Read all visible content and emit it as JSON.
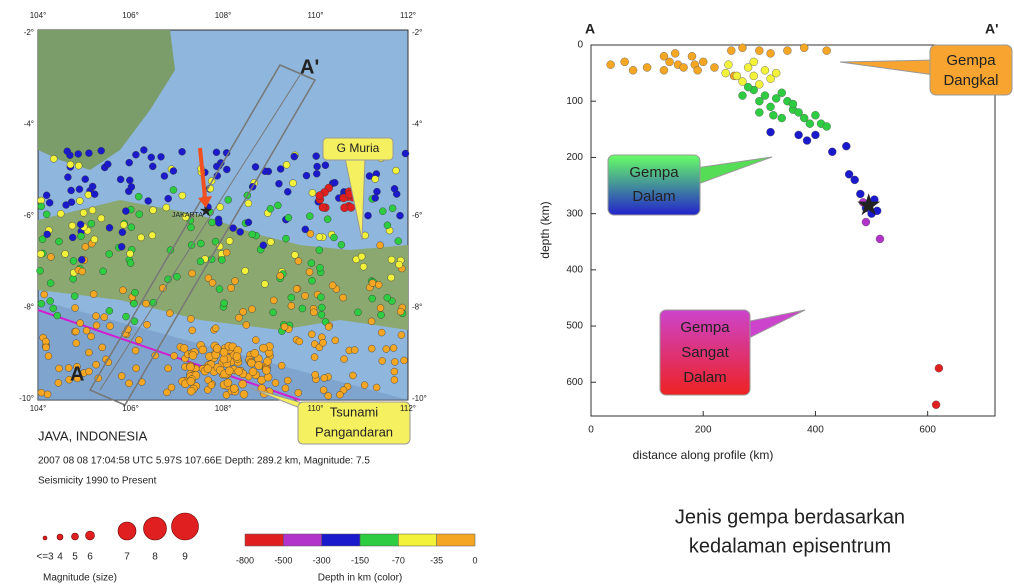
{
  "map": {
    "lon_ticks": [
      "104°",
      "106°",
      "108°",
      "110°",
      "112°"
    ],
    "lat_ticks": [
      "-2°",
      "-4°",
      "-6°",
      "-8°",
      "-10°"
    ],
    "label_a": "A",
    "label_a_prime": "A'",
    "jakarta": "JAKARTA",
    "muria": "G Muria",
    "tsunami": [
      "Tsunami",
      "Pangandaran"
    ],
    "title": "JAVA, INDONESIA",
    "event": "2007 08 08 17:04:58 UTC 5.97S 107.66E Depth: 289.2 km, Magnitude: 7.5",
    "period": "Seismicity 1990 to Present",
    "magnitude_legend": {
      "labels": [
        "<=3",
        "4",
        "5",
        "6",
        "7",
        "8",
        "9"
      ],
      "title": "Magnitude (size)"
    },
    "depth_legend": {
      "labels": [
        "-800",
        "-500",
        "-300",
        "-150",
        "-70",
        "-35",
        "0"
      ],
      "colors": [
        "#e02020",
        "#b233cc",
        "#1a1acc",
        "#2ecc40",
        "#f2f23a",
        "#f5a623"
      ],
      "title": "Depth in km (color)"
    }
  },
  "chart_data": {
    "type": "scatter",
    "corner_left": "A",
    "corner_right": "A'",
    "xlabel": "distance along profile (km)",
    "ylabel": "depth (km)",
    "xlim": [
      0,
      720
    ],
    "ylim": [
      0,
      660
    ],
    "y_reversed": true,
    "xticks": [
      0,
      200,
      400,
      600
    ],
    "yticks": [
      0,
      100,
      200,
      300,
      400,
      500,
      600
    ],
    "x": [
      35,
      60,
      75,
      100,
      130,
      140,
      150,
      155,
      165,
      180,
      185,
      200,
      220,
      250,
      270,
      300,
      320,
      350,
      380,
      420,
      130,
      190,
      255,
      240,
      260,
      280,
      290,
      300,
      310,
      320,
      270,
      330,
      245,
      290,
      270,
      290,
      300,
      310,
      320,
      330,
      340,
      350,
      360,
      370,
      380,
      390,
      400,
      410,
      420,
      300,
      325,
      340,
      360,
      280,
      320,
      370,
      385,
      400,
      430,
      455,
      460,
      470,
      480,
      490,
      500,
      505,
      510,
      490,
      515,
      485,
      620,
      615
    ],
    "values": [
      35,
      30,
      45,
      40,
      20,
      30,
      15,
      35,
      40,
      20,
      35,
      30,
      40,
      10,
      5,
      10,
      15,
      10,
      5,
      10,
      45,
      45,
      55,
      50,
      55,
      40,
      55,
      70,
      45,
      60,
      65,
      50,
      35,
      30,
      90,
      80,
      100,
      90,
      110,
      95,
      85,
      100,
      115,
      120,
      130,
      140,
      125,
      140,
      145,
      120,
      125,
      130,
      105,
      75,
      155,
      160,
      170,
      160,
      190,
      180,
      230,
      240,
      265,
      290,
      300,
      275,
      295,
      315,
      345,
      280,
      575,
      640
    ],
    "colors": [
      "#f5a623",
      "#f5a623",
      "#f5a623",
      "#f5a623",
      "#f5a623",
      "#f5a623",
      "#f5a623",
      "#f5a623",
      "#f5a623",
      "#f5a623",
      "#f5a623",
      "#f5a623",
      "#f5a623",
      "#f5a623",
      "#f5a623",
      "#f5a623",
      "#f5a623",
      "#f5a623",
      "#f5a623",
      "#f5a623",
      "#f5a623",
      "#f5a623",
      "#f5a623",
      "#f2f23a",
      "#f2f23a",
      "#f2f23a",
      "#f2f23a",
      "#f2f23a",
      "#f2f23a",
      "#f2f23a",
      "#f2f23a",
      "#f2f23a",
      "#f2f23a",
      "#f2f23a",
      "#2ecc40",
      "#2ecc40",
      "#2ecc40",
      "#2ecc40",
      "#2ecc40",
      "#2ecc40",
      "#2ecc40",
      "#2ecc40",
      "#2ecc40",
      "#2ecc40",
      "#2ecc40",
      "#2ecc40",
      "#2ecc40",
      "#2ecc40",
      "#2ecc40",
      "#2ecc40",
      "#2ecc40",
      "#2ecc40",
      "#2ecc40",
      "#2ecc40",
      "#1a1acc",
      "#1a1acc",
      "#1a1acc",
      "#1a1acc",
      "#1a1acc",
      "#1a1acc",
      "#1a1acc",
      "#1a1acc",
      "#1a1acc",
      "#1a1acc",
      "#1a1acc",
      "#1a1acc",
      "#1a1acc",
      "#b233cc",
      "#b233cc",
      "#b233cc",
      "#e02020",
      "#e02020"
    ],
    "highlight_x": 495,
    "highlight_y": 285,
    "callouts": {
      "shallow": [
        "Gempa",
        "Dangkal"
      ],
      "deep": [
        "Gempa",
        "Dalam"
      ],
      "very_deep": [
        "Gempa",
        "Sangat",
        "Dalam"
      ]
    },
    "caption": [
      "Jenis gempa berdasarkan",
      "kedalaman episentrum"
    ]
  }
}
